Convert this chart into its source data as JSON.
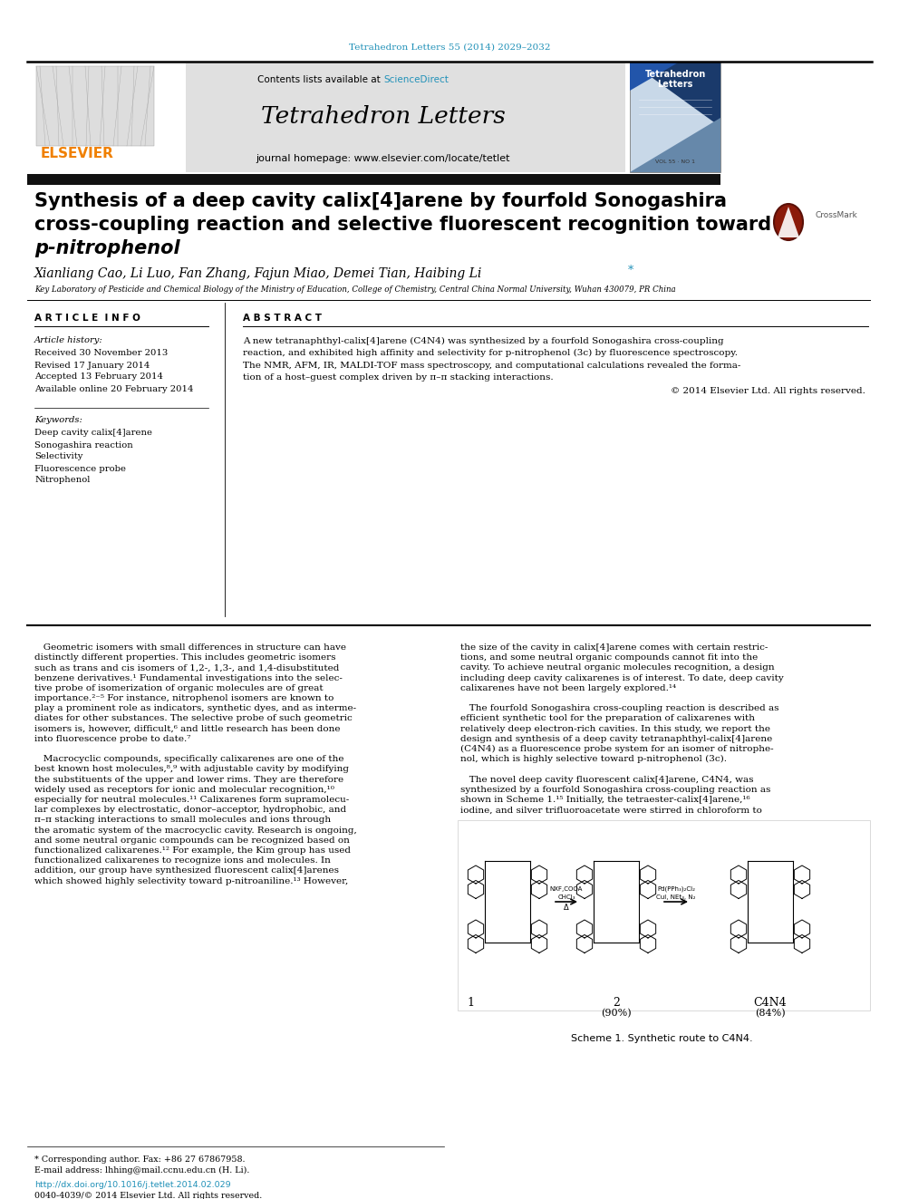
{
  "page_title": "Tetrahedron Letters 55 (2014) 2029–2032",
  "page_title_color": "#2191b8",
  "journal_name": "Tetrahedron Letters",
  "journal_url": "journal homepage: www.elsevier.com/locate/tetlet",
  "sciencedirect_color": "#2191b8",
  "elsevier_color": "#f08000",
  "article_title_line1": "Synthesis of a deep cavity calix[4]arene by fourfold Sonogashira",
  "article_title_line2": "cross-coupling reaction and selective fluorescent recognition toward",
  "article_title_line3": "p-nitrophenol",
  "authors": "Xianliang Cao, Li Luo, Fan Zhang, Fajun Miao, Demei Tian, Haibing Li",
  "affiliation": "Key Laboratory of Pesticide and Chemical Biology of the Ministry of Education, College of Chemistry, Central China Normal University, Wuhan 430079, PR China",
  "article_info_header": "A R T I C L E  I N F O",
  "abstract_header": "A B S T R A C T",
  "article_history_label": "Article history:",
  "received": "Received 30 November 2013",
  "revised": "Revised 17 January 2014",
  "accepted": "Accepted 13 February 2014",
  "available": "Available online 20 February 2014",
  "keywords_label": "Keywords:",
  "keyword1": "Deep cavity calix[4]arene",
  "keyword2": "Sonogashira reaction",
  "keyword3": "Selectivity",
  "keyword4": "Fluorescence probe",
  "keyword5": "Nitrophenol",
  "abstract_line1": "A new tetranaphthyl-calix[4]arene (C4N4) was synthesized by a fourfold Sonogashira cross-coupling",
  "abstract_line2": "reaction, and exhibited high affinity and selectivity for p-nitrophenol (3c) by fluorescence spectroscopy.",
  "abstract_line3": "The NMR, AFM, IR, MALDI-TOF mass spectroscopy, and computational calculations revealed the forma-",
  "abstract_line4": "tion of a host–guest complex driven by π–π stacking interactions.",
  "abstract_copyright": "© 2014 Elsevier Ltd. All rights reserved.",
  "scheme_caption": "Scheme 1. Synthetic route to C4N4.",
  "footnote_star": "* Corresponding author. Fax: +86 27 67867958.",
  "footnote_email": "E-mail address: lhhing@mail.ccnu.edu.cn (H. Li).",
  "doi_text": "http://dx.doi.org/10.1016/j.tetlet.2014.02.029",
  "doi_color": "#2191b8",
  "copyright_text": "0040-4039/© 2014 Elsevier Ltd. All rights reserved.",
  "header_bg": "#e0e0e0",
  "body_left_col_lines": [
    "   Geometric isomers with small differences in structure can have",
    "distinctly different properties. This includes geometric isomers",
    "such as trans and cis isomers of 1,2-, 1,3-, and 1,4-disubstituted",
    "benzene derivatives.¹ Fundamental investigations into the selec-",
    "tive probe of isomerization of organic molecules are of great",
    "importance.²⁻⁵ For instance, nitrophenol isomers are known to",
    "play a prominent role as indicators, synthetic dyes, and as interme-",
    "diates for other substances. The selective probe of such geometric",
    "isomers is, however, difficult,⁶ and little research has been done",
    "into fluorescence probe to date.⁷",
    "",
    "   Macrocyclic compounds, specifically calixarenes are one of the",
    "best known host molecules,⁸,⁹ with adjustable cavity by modifying",
    "the substituents of the upper and lower rims. They are therefore",
    "widely used as receptors for ionic and molecular recognition,¹⁰",
    "especially for neutral molecules.¹¹ Calixarenes form supramolecu-",
    "lar complexes by electrostatic, donor–acceptor, hydrophobic, and",
    "π–π stacking interactions to small molecules and ions through",
    "the aromatic system of the macrocyclic cavity. Research is ongoing,",
    "and some neutral organic compounds can be recognized based on",
    "functionalized calixarenes.¹² For example, the Kim group has used",
    "functionalized calixarenes to recognize ions and molecules. In",
    "addition, our group have synthesized fluorescent calix[4]arenes",
    "which showed highly selectivity toward p-nitroaniline.¹³ However,"
  ],
  "body_right_col_lines": [
    "the size of the cavity in calix[4]arene comes with certain restric-",
    "tions, and some neutral organic compounds cannot fit into the",
    "cavity. To achieve neutral organic molecules recognition, a design",
    "including deep cavity calixarenes is of interest. To date, deep cavity",
    "calixarenes have not been largely explored.¹⁴",
    "",
    "   The fourfold Sonogashira cross-coupling reaction is described as",
    "efficient synthetic tool for the preparation of calixarenes with",
    "relatively deep electron-rich cavities. In this study, we report the",
    "design and synthesis of a deep cavity tetranaphthyl-calix[4]arene",
    "(C4N4) as a fluorescence probe system for an isomer of nitrophe-",
    "nol, which is highly selective toward p-nitrophenol (3c).",
    "",
    "   The novel deep cavity fluorescent calix[4]arene, C4N4, was",
    "synthesized by a fourfold Sonogashira cross-coupling reaction as",
    "shown in Scheme 1.¹⁵ Initially, the tetraester-calix[4]arene,¹⁶",
    "iodine, and silver trifluoroacetate were stirred in chloroform to"
  ]
}
